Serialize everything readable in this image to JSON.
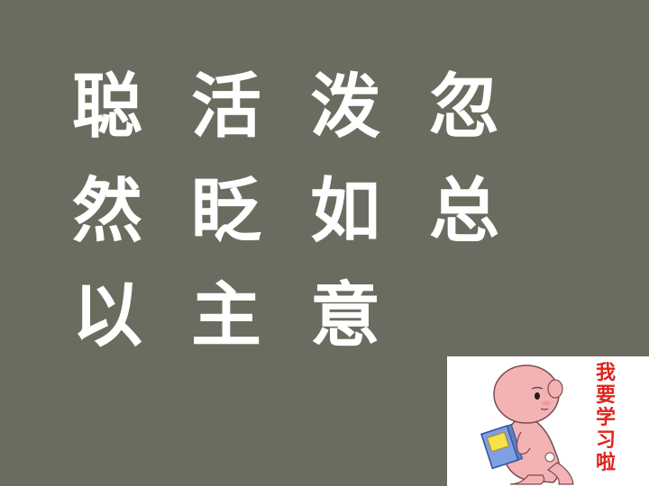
{
  "characters": [
    [
      "聪",
      "活",
      "泼",
      "忽"
    ],
    [
      "然",
      "眨",
      "如",
      "总"
    ],
    [
      "以",
      "主",
      "意"
    ]
  ],
  "sticker": {
    "slogan": [
      "我",
      "要",
      "学",
      "习",
      "啦"
    ],
    "book_label": "",
    "colors": {
      "skin": "#f3b3b5",
      "book": "#7fa0e0",
      "slogan": "#e0241b"
    }
  }
}
